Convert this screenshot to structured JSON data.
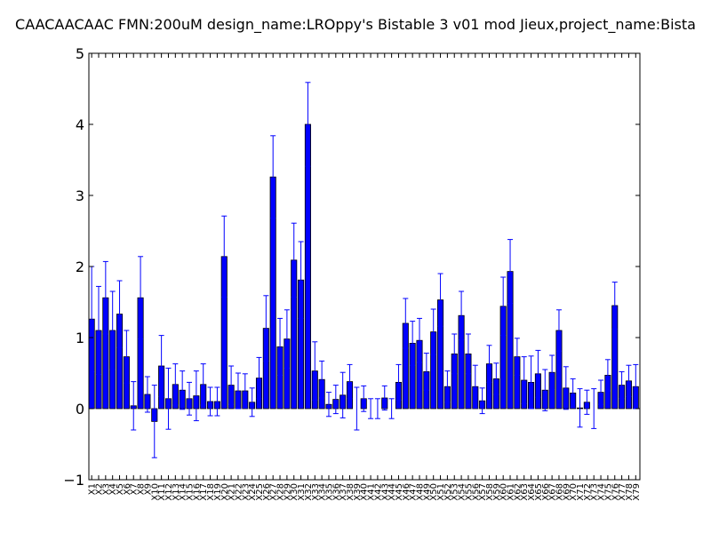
{
  "chart_data": {
    "type": "bar",
    "title": "CAACAACAAC  FMN:200uM  design_name:LROppy's Bistable 3 v01 mod Jieux,project_name:Bista",
    "xlabel": "",
    "ylabel": "",
    "ylim": [
      -1,
      5
    ],
    "yticks": [
      "−1",
      "0",
      "1",
      "2",
      "3",
      "4",
      "5"
    ],
    "bar_color": "#0000ff",
    "error_color": "#0000ff",
    "grid": false,
    "categories": [
      "X1",
      "X2",
      "X3",
      "X4",
      "X5",
      "X6",
      "X7",
      "X8",
      "X9",
      "X10",
      "X11",
      "X12",
      "X13",
      "X14",
      "X15",
      "X16",
      "X17",
      "X18",
      "X19",
      "X20",
      "X21",
      "X22",
      "X23",
      "X24",
      "X25",
      "X26",
      "X27",
      "X28",
      "X29",
      "X30",
      "X31",
      "X32",
      "X33",
      "X34",
      "X35",
      "X36",
      "X37",
      "X38",
      "X39",
      "X40",
      "X41",
      "X42",
      "X43",
      "X44",
      "X45",
      "X46",
      "X47",
      "X48",
      "X49",
      "X50",
      "X51",
      "X52",
      "X53",
      "X54",
      "X55",
      "X56",
      "X57",
      "X58",
      "X59",
      "X60",
      "X61",
      "X62",
      "X63",
      "X64",
      "X65",
      "X66",
      "X67",
      "X68",
      "X69",
      "X70",
      "X71",
      "X72",
      "X73",
      "X74",
      "X75",
      "X76",
      "X77",
      "X78",
      "X79"
    ],
    "values": [
      1.26,
      1.1,
      1.56,
      1.1,
      1.33,
      0.73,
      0.04,
      1.56,
      0.2,
      -0.18,
      0.6,
      0.14,
      0.34,
      0.26,
      0.14,
      0.18,
      0.34,
      0.1,
      0.1,
      2.14,
      0.33,
      0.25,
      0.25,
      0.09,
      0.43,
      1.13,
      3.26,
      0.87,
      0.98,
      2.09,
      1.81,
      4.0,
      0.53,
      0.41,
      0.06,
      0.13,
      0.19,
      0.38,
      0.0,
      0.14,
      0.0,
      0.0,
      0.15,
      0.0,
      0.37,
      1.2,
      0.92,
      0.96,
      0.52,
      1.08,
      1.53,
      0.31,
      0.77,
      1.31,
      0.77,
      0.31,
      0.11,
      0.63,
      0.42,
      1.44,
      1.93,
      0.73,
      0.4,
      0.37,
      0.49,
      0.26,
      0.51,
      1.1,
      0.29,
      0.22,
      0.01,
      0.09,
      0.0,
      0.23,
      0.47,
      1.45,
      0.33,
      0.39,
      0.31
    ],
    "errors": [
      0.74,
      0.62,
      0.51,
      0.55,
      0.47,
      0.37,
      0.34,
      0.58,
      0.25,
      0.51,
      0.43,
      0.43,
      0.29,
      0.27,
      0.23,
      0.35,
      0.29,
      0.2,
      0.2,
      0.57,
      0.27,
      0.25,
      0.24,
      0.2,
      0.29,
      0.46,
      0.58,
      0.4,
      0.41,
      0.52,
      0.54,
      0.59,
      0.41,
      0.26,
      0.17,
      0.2,
      0.32,
      0.24,
      0.3,
      0.18,
      0.14,
      0.14,
      0.17,
      0.14,
      0.25,
      0.35,
      0.31,
      0.31,
      0.26,
      0.32,
      0.37,
      0.22,
      0.28,
      0.34,
      0.28,
      0.3,
      0.18,
      0.26,
      0.22,
      0.41,
      0.45,
      0.26,
      0.33,
      0.37,
      0.33,
      0.29,
      0.24,
      0.29,
      0.3,
      0.2,
      0.27,
      0.17,
      0.28,
      0.17,
      0.22,
      0.33,
      0.19,
      0.22,
      0.31
    ]
  }
}
